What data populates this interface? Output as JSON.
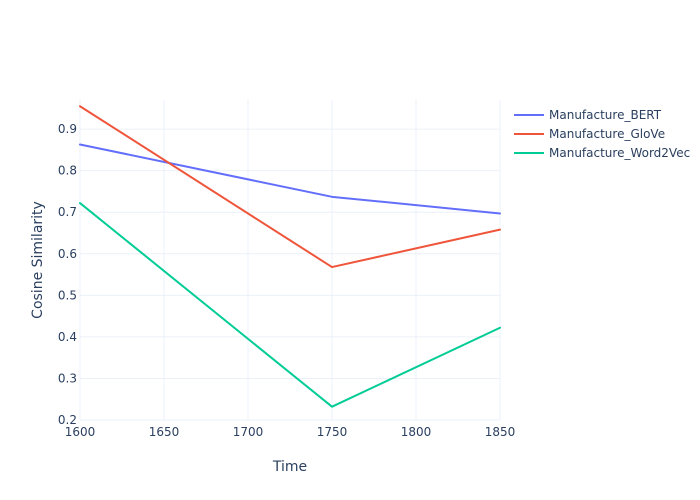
{
  "chart_data": {
    "type": "line",
    "title": "",
    "xlabel": "Time",
    "ylabel": "Cosine Similarity",
    "x": [
      1600,
      1750,
      1850
    ],
    "xlim": [
      1600,
      1850
    ],
    "ylim": [
      0.2,
      0.97
    ],
    "xticks": [
      1600,
      1650,
      1700,
      1750,
      1800,
      1850
    ],
    "yticks": [
      0.2,
      0.3,
      0.4,
      0.5,
      0.6,
      0.7,
      0.8,
      0.9
    ],
    "grid": true,
    "legend_position": "top-right",
    "series": [
      {
        "name": "Manufacture_BERT",
        "color": "#636efa",
        "values": [
          0.863,
          0.737,
          0.697
        ]
      },
      {
        "name": "Manufacture_GloVe",
        "color": "#ef553b",
        "values": [
          0.955,
          0.568,
          0.658
        ]
      },
      {
        "name": "Manufacture_Word2Vec",
        "color": "#00cc96",
        "values": [
          0.722,
          0.232,
          0.422
        ]
      }
    ]
  }
}
